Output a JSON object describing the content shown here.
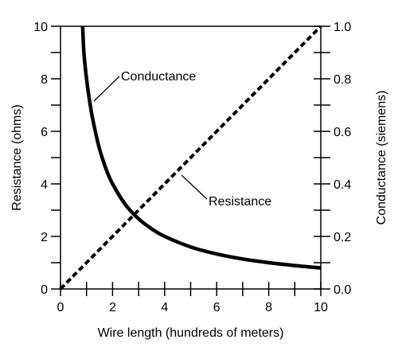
{
  "chart_data": {
    "type": "line",
    "x_axis": {
      "label": "Wire length (hundreds of meters)",
      "range": [
        0,
        10
      ],
      "ticks": [
        "0",
        "2",
        "4",
        "6",
        "8",
        "10"
      ],
      "tick_values": [
        0,
        2,
        4,
        6,
        8,
        10
      ],
      "minor_tick_values": [
        1,
        3,
        5,
        7,
        9
      ]
    },
    "y_axis_left": {
      "label": "Resistance (ohms)",
      "range": [
        0,
        10
      ],
      "ticks": [
        "0",
        "2",
        "4",
        "6",
        "8",
        "10"
      ],
      "tick_values": [
        0,
        2,
        4,
        6,
        8,
        10
      ],
      "minor_tick_values": [
        1,
        3,
        5,
        7,
        9
      ]
    },
    "y_axis_right": {
      "label": "Conductance (siemens)",
      "range": [
        0.0,
        1.0
      ],
      "ticks": [
        "0.0",
        "0.2",
        "0.4",
        "0.6",
        "0.8",
        "1.0"
      ],
      "tick_values": [
        0.0,
        0.2,
        0.4,
        0.6,
        0.8,
        1.0
      ],
      "minor_tick_values": [
        0.1,
        0.3,
        0.5,
        0.7,
        0.9
      ]
    },
    "series": [
      {
        "name": "Resistance",
        "axis": "left",
        "style": "dashed",
        "x": [
          0,
          10
        ],
        "y": [
          0,
          10
        ]
      },
      {
        "name": "Conductance",
        "axis": "right",
        "style": "solid",
        "x": [
          0.85,
          0.9,
          1,
          1.1,
          1.25,
          1.5,
          1.75,
          2,
          2.5,
          3,
          3.5,
          4,
          5,
          6,
          7,
          8,
          9,
          10
        ],
        "y": [
          1.0,
          0.9,
          0.8,
          0.727,
          0.64,
          0.533,
          0.457,
          0.4,
          0.32,
          0.267,
          0.229,
          0.2,
          0.16,
          0.133,
          0.114,
          0.1,
          0.089,
          0.08
        ]
      }
    ],
    "annotations": [
      {
        "text": "Conductance",
        "series": "Conductance"
      },
      {
        "text": "Resistance",
        "series": "Resistance"
      }
    ],
    "grid": false,
    "legend": "none"
  }
}
